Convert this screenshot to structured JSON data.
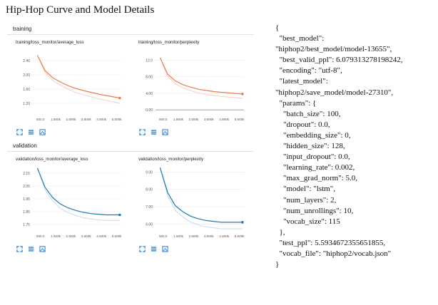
{
  "page_title": "Hip-Hop Curve and Model Details",
  "dashboard": {
    "training_label": "training",
    "validation_label": "validation",
    "x_ticks": [
      "500.0",
      "1.500k",
      "2.500k",
      "3.500k",
      "4.500k",
      "5.500k"
    ],
    "icon_names": [
      "expand-icon",
      "list-icon",
      "fit-domain-icon"
    ]
  },
  "colors": {
    "train_line": "#ee7b50",
    "train_smooth_shadow": "#f7cfc0",
    "valid_line": "#1f7bb6",
    "valid_smooth_shadow": "#c6dcec",
    "grid": "#e8e8e8"
  },
  "chart_data": [
    {
      "type": "line",
      "title": "training/loss_monitor/average_loss",
      "ylim": [
        0.9,
        2.7
      ],
      "yticks": [
        "2.40",
        "2.00",
        "1.60",
        "1.20"
      ],
      "yticks_values": [
        2.4,
        2.0,
        1.6,
        1.2
      ],
      "xlim": [
        0,
        5800
      ],
      "series": [
        {
          "values_x": [
            300,
            800,
            1300,
            1800,
            2300,
            2800,
            3300,
            3800,
            4300,
            4800,
            5300,
            5700
          ],
          "values_y": [
            2.55,
            2.12,
            1.92,
            1.8,
            1.7,
            1.62,
            1.56,
            1.51,
            1.46,
            1.42,
            1.38,
            1.35
          ]
        }
      ]
    },
    {
      "type": "line",
      "title": "training/loss_monitor/perplexity",
      "ylim": [
        -1,
        14.5
      ],
      "yticks": [
        "12.0",
        "8.00",
        "4.00",
        "0.00"
      ],
      "yticks_values": [
        12,
        8,
        4,
        0
      ],
      "xlim": [
        0,
        5800
      ],
      "series": [
        {
          "values_x": [
            300,
            800,
            1300,
            1800,
            2300,
            2800,
            3300,
            3800,
            4300,
            4800,
            5300,
            5700
          ],
          "values_y": [
            12.6,
            8.6,
            7.0,
            6.1,
            5.5,
            5.0,
            4.7,
            4.45,
            4.25,
            4.1,
            3.95,
            3.85
          ]
        }
      ]
    },
    {
      "type": "line",
      "title": "validation/loss_monitor/average_loss",
      "ylim": [
        1.7,
        2.2
      ],
      "yticks": [
        "2.15",
        "2.05",
        "1.95",
        "1.85",
        "1.75"
      ],
      "yticks_values": [
        2.15,
        2.05,
        1.95,
        1.85,
        1.75
      ],
      "xlim": [
        0,
        5800
      ],
      "series": [
        {
          "values_x": [
            300,
            800,
            1300,
            1800,
            2300,
            2800,
            3300,
            3800,
            4300,
            4800,
            5300,
            5700
          ],
          "values_y": [
            2.19,
            2.04,
            1.96,
            1.91,
            1.88,
            1.86,
            1.845,
            1.835,
            1.83,
            1.825,
            1.825,
            1.825
          ]
        }
      ]
    },
    {
      "type": "line",
      "title": "validation/loss_monitor/perplexity",
      "ylim": [
        5.6,
        9.3
      ],
      "yticks": [
        "9.00",
        "8.00",
        "7.00",
        "6.00"
      ],
      "yticks_values": [
        9,
        8,
        7,
        6
      ],
      "xlim": [
        0,
        5800
      ],
      "series": [
        {
          "values_x": [
            300,
            800,
            1300,
            1800,
            2300,
            2800,
            3300,
            3800,
            4300,
            4800,
            5300,
            5700
          ],
          "values_y": [
            9.25,
            7.8,
            7.05,
            6.7,
            6.45,
            6.3,
            6.2,
            6.15,
            6.1,
            6.1,
            6.1,
            6.1
          ]
        }
      ]
    }
  ],
  "json_lines": [
    "{",
    "  \"best_model\":",
    "\"hiphop2/best_model/model-13655\",",
    "  \"best_valid_ppl\": 6.079313278198242,",
    "  \"encoding\": \"utf-8\",",
    "  \"latest_model\":",
    "\"hiphop2/save_model/model-27310\",",
    "  \"params\": {",
    "    \"batch_size\": 100,",
    "    \"dropout\": 0.0,",
    "    \"embedding_size\": 0,",
    "    \"hidden_size\": 128,",
    "    \"input_dropout\": 0.0,",
    "    \"learning_rate\": 0.002,",
    "    \"max_grad_norm\": 5.0,",
    "    \"model\": \"lstm\",",
    "    \"num_layers\": 2,",
    "    \"num_unrollings\": 10,",
    "    \"vocab_size\": 115",
    "  },",
    "  \"test_ppl\": 5.5934672355651855,",
    "  \"vocab_file\": \"hiphop2/vocab.json\"",
    "}"
  ]
}
